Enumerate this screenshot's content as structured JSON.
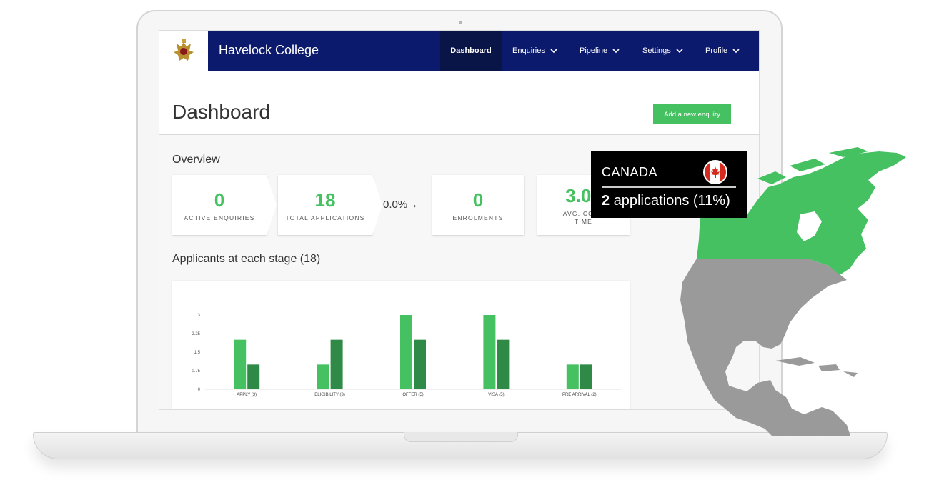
{
  "app": {
    "brand": "Havelock College"
  },
  "nav": {
    "items": [
      {
        "label": "Dashboard"
      },
      {
        "label": "Enquiries"
      },
      {
        "label": "Pipeline"
      },
      {
        "label": "Settings"
      },
      {
        "label": "Profile"
      }
    ],
    "chevron": "⌄"
  },
  "page": {
    "title": "Dashboard",
    "add_button": "Add a new enquiry"
  },
  "overview": {
    "title": "Overview",
    "stats": [
      {
        "value": "0",
        "label": "ACTIVE ENQUIRIES"
      },
      {
        "value": "18",
        "label": "TOTAL APPLICATIONS"
      },
      {
        "value": "0",
        "label": "ENROLMENTS"
      },
      {
        "value": "3.08",
        "label": "AVG. CONV",
        "label2": "TIME"
      }
    ],
    "conversion_rate": "0.0%",
    "conversion_arrow": "→"
  },
  "stages": {
    "title": "Applicants at each stage (18)"
  },
  "chart_data": {
    "type": "bar",
    "categories": [
      "APPLY (3)",
      "ELIGIBILITY (3)",
      "OFFER (5)",
      "VISA (5)",
      "PRE ARRIVAL (2)"
    ],
    "series": [
      {
        "values": [
          2,
          1,
          3,
          3,
          1
        ],
        "color": "#45c162"
      },
      {
        "values": [
          1,
          2,
          2,
          2,
          1
        ],
        "color": "#2f8a48"
      }
    ],
    "ylim": [
      0,
      3
    ],
    "yticks": [
      "0",
      "0.75",
      "1.5",
      "2.25",
      "3"
    ],
    "xlabel": "",
    "ylabel": ""
  },
  "tooltip": {
    "country": "CANADA",
    "count": "2",
    "suffix": "applications (11%)",
    "flag": "canada-flag-icon"
  },
  "map": {
    "highlight_color": "#45c162",
    "base_color": "#9a9a9a"
  },
  "colors": {
    "nav_bg": "#0c1a6e",
    "nav_active": "#091447",
    "accent": "#45c162"
  }
}
